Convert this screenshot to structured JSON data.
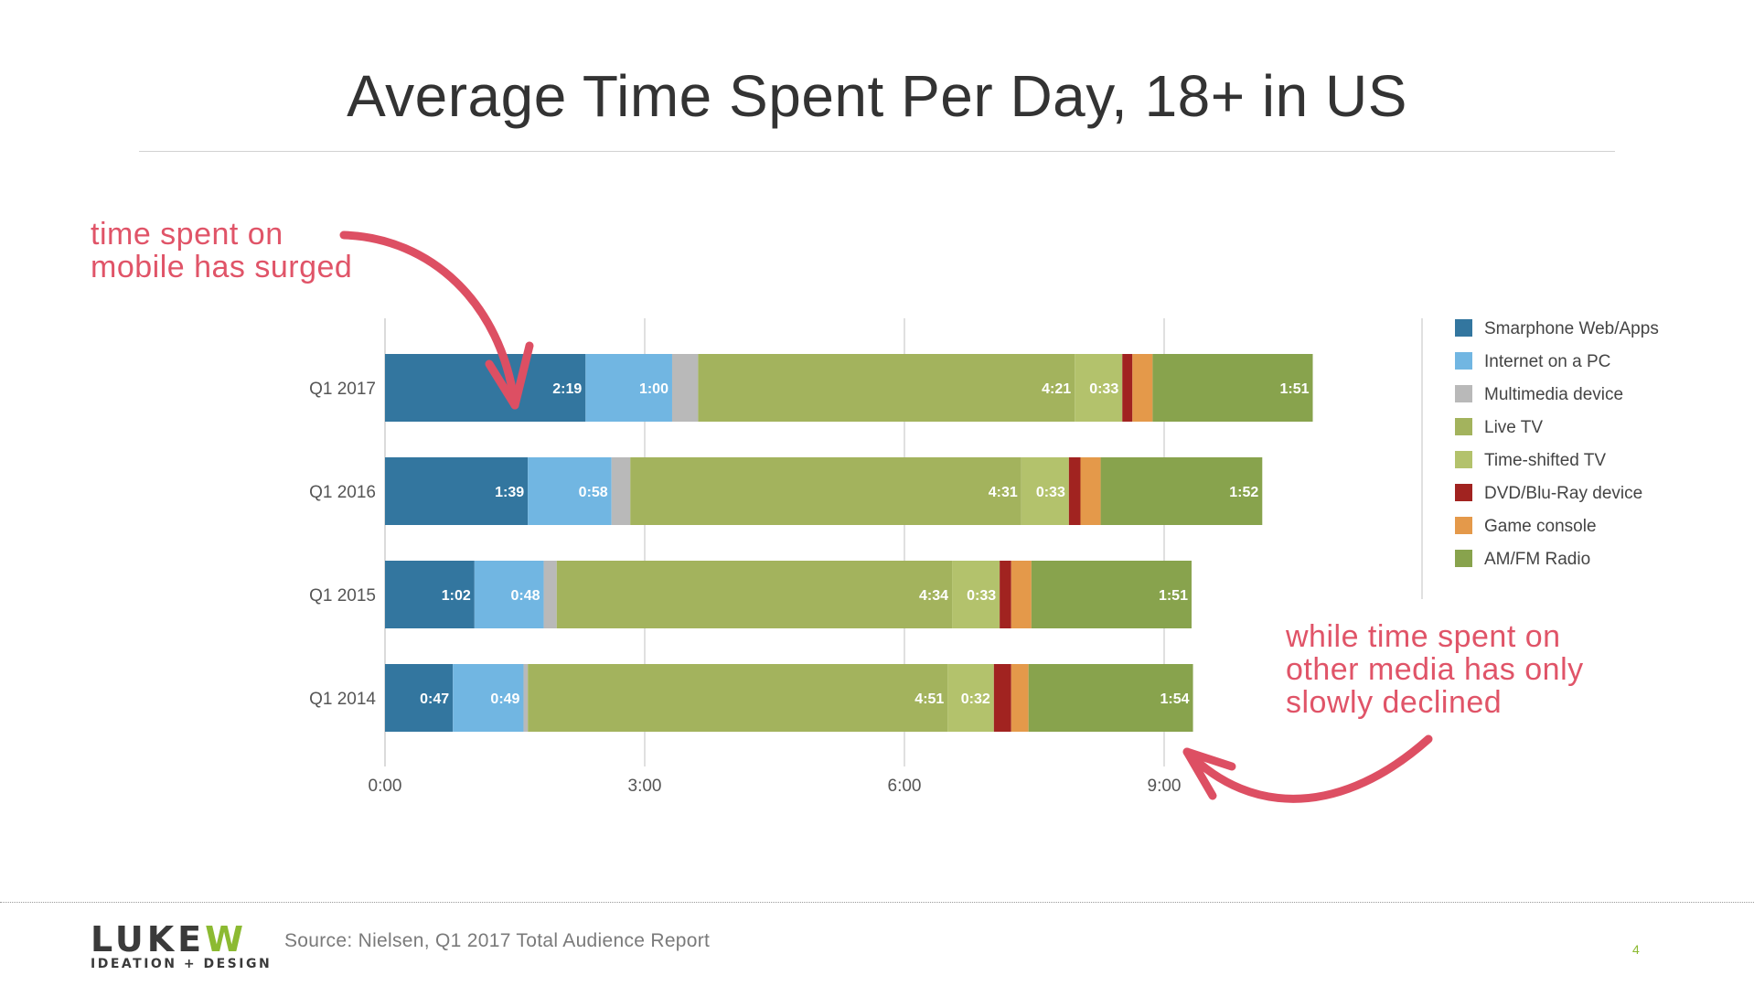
{
  "slide": {
    "title": "Average Time Spent Per Day, 18+ in US",
    "annotation_top": [
      "time spent on",
      "mobile has surged"
    ],
    "annotation_bottom": [
      "while time spent on",
      "other media has only",
      "slowly declined"
    ],
    "logo_top_a": "LUKE",
    "logo_top_b": "W",
    "logo_bottom": "IDEATION + DESIGN",
    "source": "Source: Nielsen, Q1 2017 Total Audience Report",
    "page_number": "4"
  },
  "chart_data": {
    "type": "bar",
    "orientation": "horizontal",
    "stacked": true,
    "title": "",
    "xlabel": "",
    "ylabel": "",
    "x_unit": "minutes",
    "xlim": [
      0,
      600
    ],
    "x_ticks": [
      {
        "value": 0,
        "label": "0:00"
      },
      {
        "value": 180,
        "label": "3:00"
      },
      {
        "value": 360,
        "label": "6:00"
      },
      {
        "value": 540,
        "label": "9:00"
      }
    ],
    "grid": "vertical",
    "legend_position": "right",
    "categories": [
      "Q1 2017",
      "Q1 2016",
      "Q1 2015",
      "Q1 2014"
    ],
    "series": [
      {
        "name": "Smarphone Web/Apps",
        "color": "#33769f",
        "values": [
          139,
          99,
          62,
          47
        ],
        "labels": [
          "2:19",
          "1:39",
          "1:02",
          "0:47"
        ]
      },
      {
        "name": "Internet on a PC",
        "color": "#71b6e2",
        "values": [
          60,
          58,
          48,
          49
        ],
        "labels": [
          "1:00",
          "0:58",
          "0:48",
          "0:49"
        ]
      },
      {
        "name": "Multimedia device",
        "color": "#b9b9b9",
        "values": [
          18,
          13,
          9,
          3
        ],
        "labels": [
          "",
          "",
          "",
          ""
        ]
      },
      {
        "name": "Live TV",
        "color": "#a3b35d",
        "values": [
          261,
          271,
          274,
          291
        ],
        "labels": [
          "4:21",
          "4:31",
          "4:34",
          "4:51"
        ]
      },
      {
        "name": "Time-shifted TV",
        "color": "#b3c26c",
        "values": [
          33,
          33,
          33,
          32
        ],
        "labels": [
          "0:33",
          "0:33",
          "0:33",
          "0:32"
        ]
      },
      {
        "name": "DVD/Blu-Ray device",
        "color": "#a12320",
        "values": [
          7,
          8,
          8,
          12
        ],
        "labels": [
          "",
          "",
          "",
          ""
        ]
      },
      {
        "name": "Game console",
        "color": "#e4994a",
        "values": [
          14,
          14,
          14,
          12
        ],
        "labels": [
          "",
          "",
          "",
          ""
        ]
      },
      {
        "name": "AM/FM Radio",
        "color": "#88a34d",
        "values": [
          111,
          112,
          111,
          114
        ],
        "labels": [
          "1:51",
          "1:52",
          "1:51",
          "1:54"
        ]
      }
    ]
  },
  "colors": {
    "annotation": "#e05468",
    "brand_green": "#8cba32",
    "grid": "#d5d5d5",
    "text": "#444444"
  }
}
